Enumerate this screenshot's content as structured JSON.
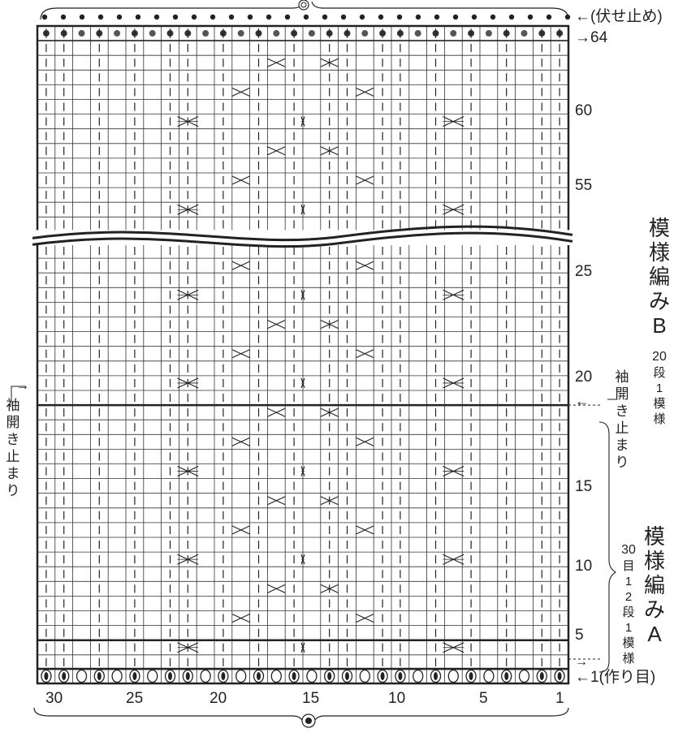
{
  "labels": {
    "bind_off": "←(伏せ止め)",
    "row_top": "→64",
    "row_1": "←1(作り目)",
    "sleeve_right": "袖開き止まり",
    "sleeve_left": "袖開き止まり",
    "row_15": "15"
  },
  "pattern_b": {
    "title": "模様編みB",
    "repeat_rows": "20",
    "repeat_rest": "段1模様"
  },
  "pattern_a": {
    "title_main": "模様編み",
    "title_letter": "A",
    "repeat_cols": "30",
    "repeat_rows": "目12段1模様"
  },
  "row_numbers_upper": [
    "64",
    "60",
    "55"
  ],
  "row_numbers_lower": [
    "25",
    "20",
    "15",
    "10",
    "5"
  ],
  "column_numbers": [
    "30",
    "25",
    "20",
    "15",
    "10",
    "5",
    "1"
  ],
  "symbols": {
    "knit": "|",
    "purl_dot": "•",
    "cast_on": "0",
    "cable": "cross",
    "decrease": "k2tog"
  }
}
